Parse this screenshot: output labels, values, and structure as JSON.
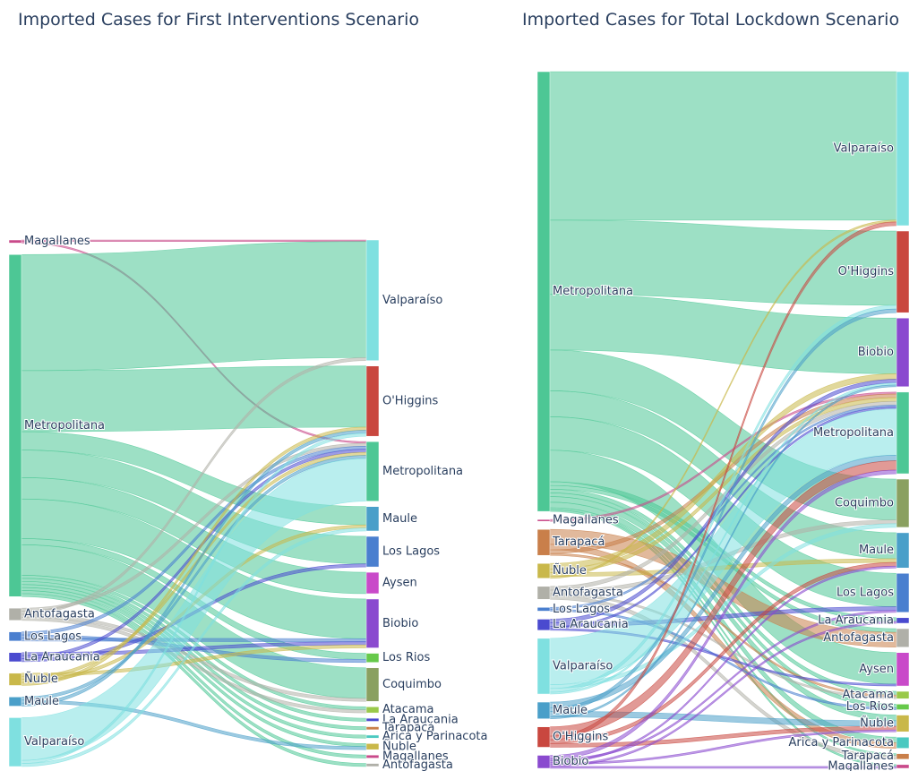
{
  "chart_data": [
    {
      "type": "sankey",
      "title": "Imported Cases for First Interventions Scenario",
      "sources": [
        {
          "label": "Magallanes",
          "color": "#c94a8a",
          "flows": [
            {
              "to": "Valparaíso",
              "value": 0.5
            },
            {
              "to": "Metropolitana",
              "value": 0.5
            }
          ]
        },
        {
          "label": "Metropolitana",
          "color": "#4dc795",
          "flows": [
            {
              "to": "Valparaíso",
              "value": 38
            },
            {
              "to": "O'Higgins",
              "value": 20
            },
            {
              "to": "Maule",
              "value": 6
            },
            {
              "to": "Los Lagos",
              "value": 9
            },
            {
              "to": "Aysen",
              "value": 7
            },
            {
              "to": "Biobio",
              "value": 13
            },
            {
              "to": "Los Rios",
              "value": 2
            },
            {
              "to": "Coquimbo",
              "value": 10
            },
            {
              "to": "Atacama",
              "value": 1
            },
            {
              "to": "La Araucania",
              "value": 1
            },
            {
              "to": "Tarapacá",
              "value": 1
            },
            {
              "to": "Arica y Parinacota",
              "value": 1
            },
            {
              "to": "Ñuble",
              "value": 1
            },
            {
              "to": "Magallanes",
              "value": 1
            },
            {
              "to": "Antofagasta",
              "value": 1
            }
          ]
        },
        {
          "label": "Antofagasta",
          "color": "#b0b0a8",
          "flows": [
            {
              "to": "Metropolitana",
              "value": 1
            },
            {
              "to": "Valparaíso",
              "value": 1
            },
            {
              "to": "Coquimbo",
              "value": 1
            },
            {
              "to": "Atacama",
              "value": 1
            }
          ]
        },
        {
          "label": "Los Lagos",
          "color": "#4a7fcf",
          "flows": [
            {
              "to": "Metropolitana",
              "value": 1
            },
            {
              "to": "Los Rios",
              "value": 1
            },
            {
              "to": "Biobio",
              "value": 1
            }
          ]
        },
        {
          "label": "La Araucania",
          "color": "#4a4acf",
          "flows": [
            {
              "to": "Biobio",
              "value": 1
            },
            {
              "to": "Metropolitana",
              "value": 1
            },
            {
              "to": "Los Lagos",
              "value": 1
            }
          ]
        },
        {
          "label": "Ñuble",
          "color": "#c9b84a",
          "flows": [
            {
              "to": "Biobio",
              "value": 1
            },
            {
              "to": "Metropolitana",
              "value": 1
            },
            {
              "to": "Maule",
              "value": 1
            },
            {
              "to": "O'Higgins",
              "value": 1
            }
          ]
        },
        {
          "label": "Maule",
          "color": "#4a9fc9",
          "flows": [
            {
              "to": "Metropolitana",
              "value": 1
            },
            {
              "to": "Ñuble",
              "value": 1
            },
            {
              "to": "O'Higgins",
              "value": 1
            }
          ]
        },
        {
          "label": "Valparaíso",
          "color": "#7fe0e0",
          "flows": [
            {
              "to": "Metropolitana",
              "value": 14
            },
            {
              "to": "O'Higgins",
              "value": 1
            },
            {
              "to": "Maule",
              "value": 1
            }
          ]
        }
      ],
      "targets": [
        {
          "label": "Valparaíso",
          "color": "#7fe0e0"
        },
        {
          "label": "O'Higgins",
          "color": "#c9473f"
        },
        {
          "label": "Metropolitana",
          "color": "#4dc795"
        },
        {
          "label": "Maule",
          "color": "#4a9fc9"
        },
        {
          "label": "Los Lagos",
          "color": "#4a7fcf"
        },
        {
          "label": "Aysen",
          "color": "#c94ac9"
        },
        {
          "label": "Biobio",
          "color": "#8a4acf"
        },
        {
          "label": "Los Rios",
          "color": "#66c94a"
        },
        {
          "label": "Coquimbo",
          "color": "#8aa060"
        },
        {
          "label": "Atacama",
          "color": "#9ac94a"
        },
        {
          "label": "La Araucania",
          "color": "#4a4acf"
        },
        {
          "label": "Tarapacá",
          "color": "#c97f4a"
        },
        {
          "label": "Arica y Parinacota",
          "color": "#4ac9c0"
        },
        {
          "label": "Ñuble",
          "color": "#c9b84a"
        },
        {
          "label": "Magallanes",
          "color": "#c94a8a"
        },
        {
          "label": "Antofagasta",
          "color": "#b0b0a8"
        }
      ]
    },
    {
      "type": "sankey",
      "title": "Imported Cases for Total Lockdown Scenario",
      "sources": [
        {
          "label": "Metropolitana",
          "color": "#4dc795",
          "flows": [
            {
              "to": "Valparaíso",
              "value": 80
            },
            {
              "to": "O'Higgins",
              "value": 40
            },
            {
              "to": "Biobio",
              "value": 30
            },
            {
              "to": "Coquimbo",
              "value": 22
            },
            {
              "to": "Maule",
              "value": 14
            },
            {
              "to": "Los Lagos",
              "value": 18
            },
            {
              "to": "Aysen",
              "value": 17
            },
            {
              "to": "La Araucania",
              "value": 2
            },
            {
              "to": "Antofagasta",
              "value": 2
            },
            {
              "to": "Atacama",
              "value": 2
            },
            {
              "to": "Los Rios",
              "value": 2
            },
            {
              "to": "Ñuble",
              "value": 3
            },
            {
              "to": "Arica y Parinacota",
              "value": 3
            },
            {
              "to": "Tarapacá",
              "value": 1
            },
            {
              "to": "Magallanes",
              "value": 1
            }
          ]
        },
        {
          "label": "Magallanes",
          "color": "#c94a8a",
          "flows": [
            {
              "to": "Metropolitana",
              "value": 1
            }
          ]
        },
        {
          "label": "Tarapacá",
          "color": "#c97f4a",
          "flows": [
            {
              "to": "Antofagasta",
              "value": 8
            },
            {
              "to": "Arica y Parinacota",
              "value": 3
            },
            {
              "to": "Metropolitana",
              "value": 2
            },
            {
              "to": "Atacama",
              "value": 1
            }
          ]
        },
        {
          "label": "Ñuble",
          "color": "#c9b84a",
          "flows": [
            {
              "to": "Biobio",
              "value": 3
            },
            {
              "to": "Metropolitana",
              "value": 2
            },
            {
              "to": "Maule",
              "value": 2
            },
            {
              "to": "Valparaíso",
              "value": 1
            }
          ]
        },
        {
          "label": "Antofagasta",
          "color": "#b0b0a8",
          "flows": [
            {
              "to": "Metropolitana",
              "value": 2
            },
            {
              "to": "Coquimbo",
              "value": 2
            },
            {
              "to": "Atacama",
              "value": 1
            },
            {
              "to": "Tarapacá",
              "value": 2
            }
          ]
        },
        {
          "label": "Los Lagos",
          "color": "#4a7fcf",
          "flows": [
            {
              "to": "Metropolitana",
              "value": 1
            },
            {
              "to": "Los Rios",
              "value": 1
            }
          ]
        },
        {
          "label": "La Araucania",
          "color": "#4a4acf",
          "flows": [
            {
              "to": "Biobio",
              "value": 2
            },
            {
              "to": "Los Lagos",
              "value": 2
            },
            {
              "to": "Metropolitana",
              "value": 1
            },
            {
              "to": "Aysen",
              "value": 1
            }
          ]
        },
        {
          "label": "Valparaíso",
          "color": "#7fe0e0",
          "flows": [
            {
              "to": "Metropolitana",
              "value": 25
            },
            {
              "to": "Coquimbo",
              "value": 2
            },
            {
              "to": "O'Higgins",
              "value": 2
            },
            {
              "to": "Biobio",
              "value": 1
            }
          ]
        },
        {
          "label": "Maule",
          "color": "#4a9fc9",
          "flows": [
            {
              "to": "Metropolitana",
              "value": 3
            },
            {
              "to": "O'Higgins",
              "value": 2
            },
            {
              "to": "Ñuble",
              "value": 3
            },
            {
              "to": "Biobio",
              "value": 1
            }
          ]
        },
        {
          "label": "O'Higgins",
          "color": "#c9473f",
          "flows": [
            {
              "to": "Metropolitana",
              "value": 5
            },
            {
              "to": "Valparaíso",
              "value": 2
            },
            {
              "to": "Maule",
              "value": 2
            },
            {
              "to": "Ñuble",
              "value": 2
            }
          ]
        },
        {
          "label": "Biobio",
          "color": "#8a4acf",
          "flows": [
            {
              "to": "Metropolitana",
              "value": 2
            },
            {
              "to": "Los Lagos",
              "value": 1
            },
            {
              "to": "Maule",
              "value": 1
            },
            {
              "to": "Ñuble",
              "value": 1
            },
            {
              "to": "La Araucania",
              "value": 1
            },
            {
              "to": "Magallanes",
              "value": 1
            }
          ]
        }
      ],
      "targets": [
        {
          "label": "Valparaíso",
          "color": "#7fe0e0"
        },
        {
          "label": "O'Higgins",
          "color": "#c9473f"
        },
        {
          "label": "Biobio",
          "color": "#8a4acf"
        },
        {
          "label": "Metropolitana",
          "color": "#4dc795"
        },
        {
          "label": "Coquimbo",
          "color": "#8aa060"
        },
        {
          "label": "Maule",
          "color": "#4a9fc9"
        },
        {
          "label": "Los Lagos",
          "color": "#4a7fcf"
        },
        {
          "label": "La Araucania",
          "color": "#4a4acf"
        },
        {
          "label": "Antofagasta",
          "color": "#b0b0a8"
        },
        {
          "label": "Aysen",
          "color": "#c94ac9"
        },
        {
          "label": "Atacama",
          "color": "#9ac94a"
        },
        {
          "label": "Los Rios",
          "color": "#66c94a"
        },
        {
          "label": "Ñuble",
          "color": "#c9b84a"
        },
        {
          "label": "Arica y Parinacota",
          "color": "#4ac9c0"
        },
        {
          "label": "Tarapacá",
          "color": "#c97f4a"
        },
        {
          "label": "Magallanes",
          "color": "#c94a8a"
        }
      ]
    }
  ]
}
